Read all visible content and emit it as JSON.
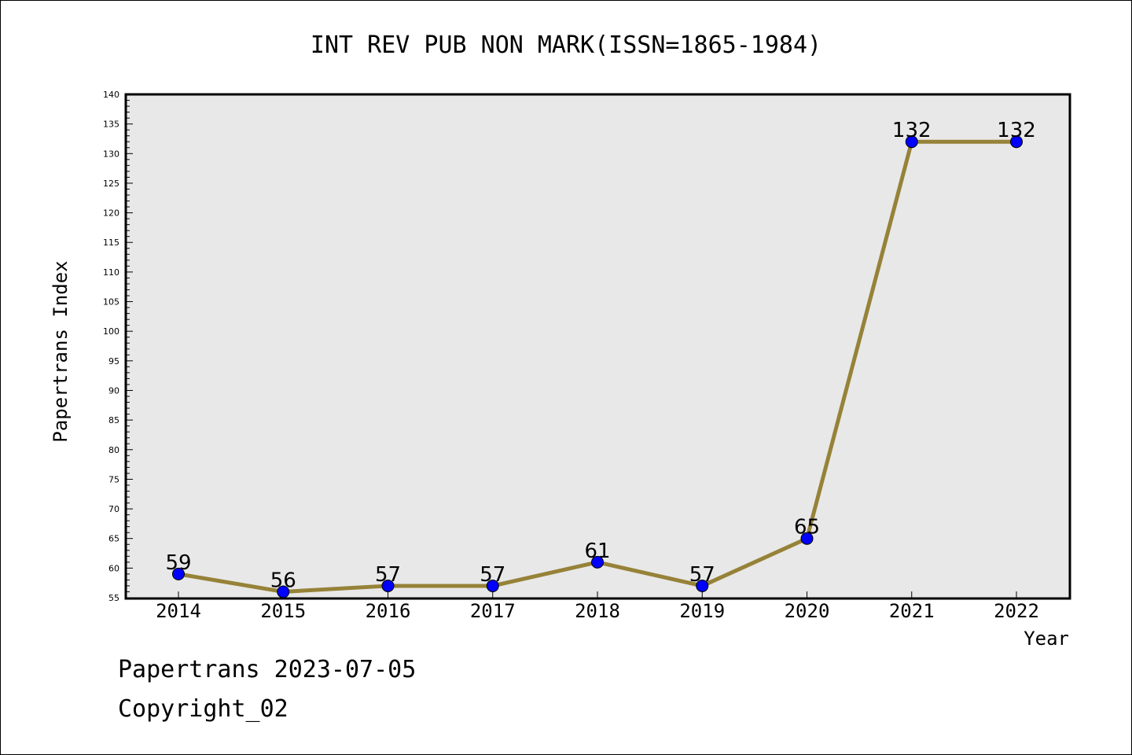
{
  "chart_data": {
    "type": "line",
    "title": "INT REV PUB NON MARK(ISSN=1865-1984)",
    "xlabel": "Year",
    "ylabel": "Papertrans Index",
    "categories": [
      "2014",
      "2015",
      "2016",
      "2017",
      "2018",
      "2019",
      "2020",
      "2021",
      "2022"
    ],
    "series": [
      {
        "values": [
          59,
          56,
          57,
          57,
          61,
          57,
          65,
          132,
          132
        ]
      }
    ],
    "data_labels": [
      "59",
      "56",
      "57",
      "57",
      "61",
      "57",
      "65",
      "132",
      "132"
    ],
    "ylim": [
      55,
      140
    ],
    "yticks": [
      "55",
      "60",
      "65",
      "70",
      "75",
      "80",
      "85",
      "90",
      "95",
      "100",
      "105",
      "110",
      "115",
      "120",
      "125",
      "130",
      "135",
      "140"
    ],
    "grid": false,
    "colors": {
      "line": "#968238",
      "marker": "#0000ff",
      "plot_background": "#e8e8e8"
    }
  },
  "footer": {
    "date_text": "Papertrans 2023-07-05",
    "copyright_text": "Copyright_02"
  }
}
